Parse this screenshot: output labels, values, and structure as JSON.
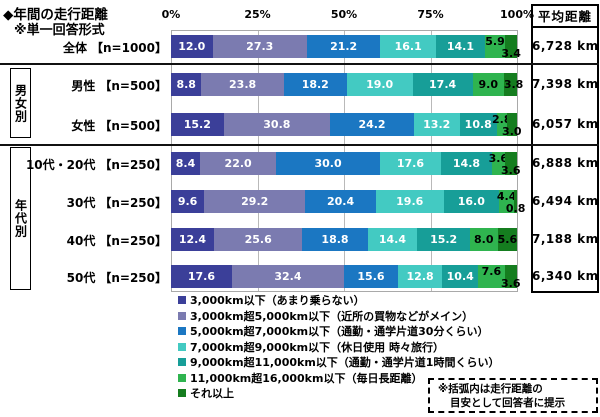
{
  "title": "◆年間の走行距離",
  "subtitle": "※単一回答形式",
  "avg_header": "平均距離",
  "note": {
    "line1": "※括弧内は走行距離の",
    "line2": "目安として回答者に提示"
  },
  "chart_data": {
    "type": "bar",
    "orientation": "horizontal",
    "stacked": true,
    "unit": "%",
    "xlim": [
      0,
      100
    ],
    "x_tick_labels": [
      "0%",
      "25%",
      "50%",
      "75%",
      "100%"
    ],
    "x_ticks": [
      0,
      25,
      50,
      75,
      100
    ],
    "grid": true,
    "legend_position": "bottom",
    "series": [
      {
        "name": "3,000km以下（あまり乗らない）",
        "color": "#3b3f99",
        "label_color": "#ffffff"
      },
      {
        "name": "3,000km超5,000km以下（近所の買物などがメイン）",
        "color": "#7b7bb0",
        "label_color": "#ffffff"
      },
      {
        "name": "5,000km超7,000km以下（通勤・通学片道30分くらい）",
        "color": "#1b77c2",
        "label_color": "#ffffff"
      },
      {
        "name": "7,000km超9,000km以下（休日使用 時々旅行）",
        "color": "#43cac2",
        "label_color": "#ffffff"
      },
      {
        "name": "9,000km超11,000km以下（通勤・通学片道1時間くらい）",
        "color": "#179e98",
        "label_color": "#ffffff"
      },
      {
        "name": "11,000km超16,000km以下（毎日長距離）",
        "color": "#2fb44f",
        "label_color": "#000000"
      },
      {
        "name": "それ以上",
        "color": "#157d1f",
        "label_color": "#000000"
      }
    ],
    "rows": [
      {
        "label": "全体",
        "n": "【n=1000】",
        "values": [
          12.0,
          27.3,
          21.2,
          16.1,
          14.1,
          5.9,
          3.4
        ],
        "average": "6,728 km"
      },
      {
        "label": "男性",
        "n": "【n=500】",
        "values": [
          8.8,
          23.8,
          18.2,
          19.0,
          17.4,
          9.0,
          3.8
        ],
        "average": "7,398 km"
      },
      {
        "label": "女性",
        "n": "【n=500】",
        "values": [
          15.2,
          30.8,
          24.2,
          13.2,
          10.8,
          2.8,
          3.0
        ],
        "average": "6,057 km"
      },
      {
        "label": "10代・20代",
        "n": "【n=250】",
        "values": [
          8.4,
          22.0,
          30.0,
          17.6,
          14.8,
          3.6,
          3.6
        ],
        "average": "6,888 km"
      },
      {
        "label": "30代",
        "n": "【n=250】",
        "values": [
          9.6,
          29.2,
          20.4,
          19.6,
          16.0,
          4.4,
          0.8
        ],
        "average": "6,494 km"
      },
      {
        "label": "40代",
        "n": "【n=250】",
        "values": [
          12.4,
          25.6,
          18.8,
          14.4,
          15.2,
          8.0,
          5.6
        ],
        "average": "7,188 km"
      },
      {
        "label": "50代",
        "n": "【n=250】",
        "values": [
          17.6,
          32.4,
          15.6,
          12.8,
          10.4,
          7.6,
          3.6
        ],
        "average": "6,340 km"
      }
    ],
    "groups": [
      {
        "label": "男女別",
        "start": 1,
        "end": 2
      },
      {
        "label": "年代別",
        "start": 3,
        "end": 6
      }
    ]
  }
}
